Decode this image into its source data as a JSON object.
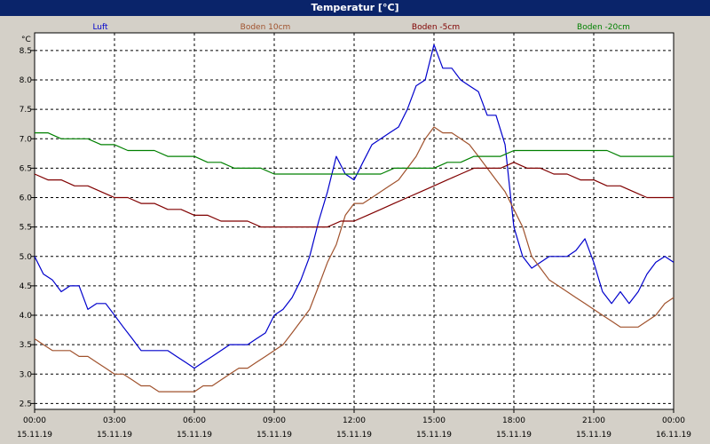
{
  "window": {
    "title": "Temperatur [°C]"
  },
  "chart_data": {
    "type": "line",
    "ylabel": "°C",
    "ylim": [
      2.4,
      8.8
    ],
    "yticks": [
      2.5,
      3.0,
      3.5,
      4.0,
      4.5,
      5.0,
      5.5,
      6.0,
      6.5,
      7.0,
      7.5,
      8.0,
      8.5
    ],
    "xlim": [
      0,
      24
    ],
    "xticks": [
      {
        "x": 0,
        "time": "00:00",
        "date": "15.11.19"
      },
      {
        "x": 3,
        "time": "03:00",
        "date": "15.11.19"
      },
      {
        "x": 6,
        "time": "06:00",
        "date": "15.11.19"
      },
      {
        "x": 9,
        "time": "09:00",
        "date": "15.11.19"
      },
      {
        "x": 12,
        "time": "12:00",
        "date": "15.11.19"
      },
      {
        "x": 15,
        "time": "15:00",
        "date": "15.11.19"
      },
      {
        "x": 18,
        "time": "18:00",
        "date": "15.11.19"
      },
      {
        "x": 21,
        "time": "21:00",
        "date": "15.11.19"
      },
      {
        "x": 24,
        "time": "00:00",
        "date": "16.11.19"
      }
    ],
    "grid": true,
    "legend_position": "top",
    "series": [
      {
        "name": "Luft",
        "color": "#0000cc",
        "x": [
          0,
          0.33,
          0.67,
          1,
          1.33,
          1.67,
          2,
          2.33,
          2.67,
          3,
          3.33,
          3.67,
          4,
          4.33,
          4.67,
          5,
          5.33,
          5.67,
          6,
          6.33,
          6.67,
          7,
          7.33,
          7.67,
          8,
          8.33,
          8.67,
          9,
          9.33,
          9.67,
          10,
          10.33,
          10.67,
          11,
          11.33,
          11.67,
          12,
          12.33,
          12.67,
          13,
          13.33,
          13.67,
          14,
          14.33,
          14.67,
          15,
          15.33,
          15.67,
          16,
          16.33,
          16.67,
          17,
          17.33,
          17.67,
          18,
          18.33,
          18.67,
          19,
          19.33,
          19.67,
          20,
          20.33,
          20.67,
          21,
          21.33,
          21.67,
          22,
          22.33,
          22.67,
          23,
          23.33,
          23.67,
          24
        ],
        "values": [
          5.0,
          4.7,
          4.6,
          4.4,
          4.5,
          4.5,
          4.1,
          4.2,
          4.2,
          4.0,
          3.8,
          3.6,
          3.4,
          3.4,
          3.4,
          3.4,
          3.3,
          3.2,
          3.1,
          3.2,
          3.3,
          3.4,
          3.5,
          3.5,
          3.5,
          3.6,
          3.7,
          4.0,
          4.1,
          4.3,
          4.6,
          5.0,
          5.6,
          6.1,
          6.7,
          6.4,
          6.3,
          6.6,
          6.9,
          7.0,
          7.1,
          7.2,
          7.5,
          7.9,
          8.0,
          8.6,
          8.2,
          8.2,
          8.0,
          7.9,
          7.8,
          7.4,
          7.4,
          6.9,
          5.5,
          5.0,
          4.8,
          4.9,
          5.0,
          5.0,
          5.0,
          5.1,
          5.3,
          4.9,
          4.4,
          4.2,
          4.4,
          4.2,
          4.4,
          4.7,
          4.9,
          5.0,
          4.9
        ]
      },
      {
        "name": "Boden 10cm",
        "color": "#a0522d",
        "x": [
          0,
          0.33,
          0.67,
          1,
          1.33,
          1.67,
          2,
          2.33,
          2.67,
          3,
          3.33,
          3.67,
          4,
          4.33,
          4.67,
          5,
          5.33,
          5.67,
          6,
          6.33,
          6.67,
          7,
          7.33,
          7.67,
          8,
          8.33,
          8.67,
          9,
          9.33,
          9.67,
          10,
          10.33,
          10.67,
          11,
          11.33,
          11.67,
          12,
          12.33,
          12.67,
          13,
          13.33,
          13.67,
          14,
          14.33,
          14.67,
          15,
          15.33,
          15.67,
          16,
          16.33,
          16.67,
          17,
          17.33,
          17.67,
          18,
          18.33,
          18.67,
          19,
          19.33,
          19.67,
          20,
          20.33,
          20.67,
          21,
          21.33,
          21.67,
          22,
          22.33,
          22.67,
          23,
          23.33,
          23.67,
          24
        ],
        "values": [
          3.6,
          3.5,
          3.4,
          3.4,
          3.4,
          3.3,
          3.3,
          3.2,
          3.1,
          3.0,
          3.0,
          2.9,
          2.8,
          2.8,
          2.7,
          2.7,
          2.7,
          2.7,
          2.7,
          2.8,
          2.8,
          2.9,
          3.0,
          3.1,
          3.1,
          3.2,
          3.3,
          3.4,
          3.5,
          3.7,
          3.9,
          4.1,
          4.5,
          4.9,
          5.2,
          5.7,
          5.9,
          5.9,
          6.0,
          6.1,
          6.2,
          6.3,
          6.5,
          6.7,
          7.0,
          7.2,
          7.1,
          7.1,
          7.0,
          6.9,
          6.7,
          6.5,
          6.3,
          6.1,
          5.8,
          5.5,
          5.0,
          4.8,
          4.6,
          4.5,
          4.4,
          4.3,
          4.2,
          4.1,
          4.0,
          3.9,
          3.8,
          3.8,
          3.8,
          3.9,
          4.0,
          4.2,
          4.3
        ]
      },
      {
        "name": "Boden -5cm",
        "color": "#800000",
        "x": [
          0,
          0.5,
          1,
          1.5,
          2,
          2.5,
          3,
          3.5,
          4,
          4.5,
          5,
          5.5,
          6,
          6.5,
          7,
          7.5,
          8,
          8.5,
          9,
          9.5,
          10,
          10.5,
          11,
          11.5,
          12,
          12.5,
          13,
          13.5,
          14,
          14.5,
          15,
          15.5,
          16,
          16.5,
          17,
          17.5,
          18,
          18.5,
          19,
          19.5,
          20,
          20.5,
          21,
          21.5,
          22,
          22.5,
          23,
          23.5,
          24
        ],
        "values": [
          6.4,
          6.3,
          6.3,
          6.2,
          6.2,
          6.1,
          6.0,
          6.0,
          5.9,
          5.9,
          5.8,
          5.8,
          5.7,
          5.7,
          5.6,
          5.6,
          5.6,
          5.5,
          5.5,
          5.5,
          5.5,
          5.5,
          5.5,
          5.6,
          5.6,
          5.7,
          5.8,
          5.9,
          6.0,
          6.1,
          6.2,
          6.3,
          6.4,
          6.5,
          6.5,
          6.5,
          6.6,
          6.5,
          6.5,
          6.4,
          6.4,
          6.3,
          6.3,
          6.2,
          6.2,
          6.1,
          6.0,
          6.0,
          6.0
        ]
      },
      {
        "name": "Boden -20cm",
        "color": "#008000",
        "x": [
          0,
          0.5,
          1,
          1.5,
          2,
          2.5,
          3,
          3.5,
          4,
          4.5,
          5,
          5.5,
          6,
          6.5,
          7,
          7.5,
          8,
          8.5,
          9,
          9.5,
          10,
          10.5,
          11,
          11.5,
          12,
          12.5,
          13,
          13.5,
          14,
          14.5,
          15,
          15.5,
          16,
          16.5,
          17,
          17.5,
          18,
          18.5,
          19,
          19.5,
          20,
          20.5,
          21,
          21.5,
          22,
          22.5,
          23,
          23.5,
          24
        ],
        "values": [
          7.1,
          7.1,
          7.0,
          7.0,
          7.0,
          6.9,
          6.9,
          6.8,
          6.8,
          6.8,
          6.7,
          6.7,
          6.7,
          6.6,
          6.6,
          6.5,
          6.5,
          6.5,
          6.4,
          6.4,
          6.4,
          6.4,
          6.4,
          6.4,
          6.4,
          6.4,
          6.4,
          6.5,
          6.5,
          6.5,
          6.5,
          6.6,
          6.6,
          6.7,
          6.7,
          6.7,
          6.8,
          6.8,
          6.8,
          6.8,
          6.8,
          6.8,
          6.8,
          6.8,
          6.7,
          6.7,
          6.7,
          6.7,
          6.7
        ]
      }
    ]
  }
}
